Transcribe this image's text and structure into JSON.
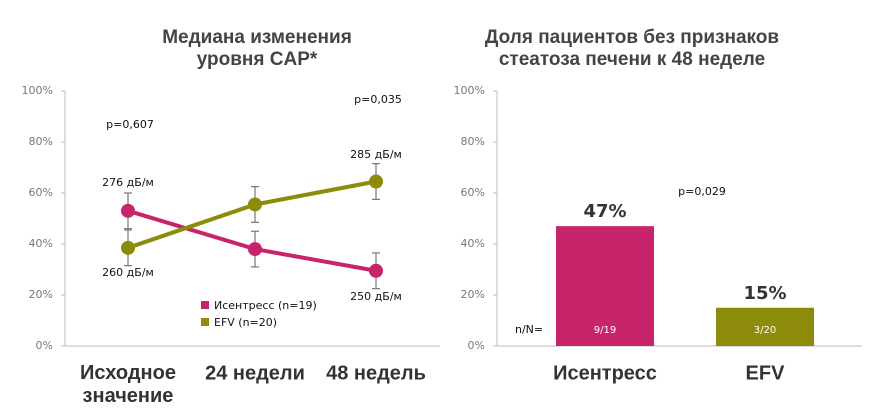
{
  "chart_data": [
    {
      "type": "line",
      "title": "Медиана изменения\nуровня CAP*",
      "categories": [
        "Исходное\nзначение",
        "24 недели",
        "48 недель"
      ],
      "series": [
        {
          "name": "Исентресс (n=19)",
          "color": "#c8246b",
          "values": [
            53,
            38,
            29.5
          ],
          "errors": [
            7,
            7,
            7
          ]
        },
        {
          "name": "EFV (n=20)",
          "color": "#8c8c0a",
          "values": [
            38.5,
            55.5,
            64.5
          ],
          "errors": [
            7,
            7,
            7
          ]
        }
      ],
      "annotations": [
        "p=0,607",
        "p=0,035",
        "276 дБ/м",
        "260 дБ/м",
        "285 дБ/м",
        "250 дБ/м"
      ],
      "ylim": [
        0,
        100
      ],
      "yticks": [
        {
          "value": 0,
          "label": "0%"
        },
        {
          "value": 20,
          "label": "20%"
        },
        {
          "value": 40,
          "label": "40%"
        },
        {
          "value": 60,
          "label": "60%"
        },
        {
          "value": 80,
          "label": "80%"
        },
        {
          "value": 100,
          "label": "100%"
        }
      ]
    },
    {
      "type": "bar",
      "title": "Доля пациентов без признаков\nстеатоза печени к 48 неделе",
      "categories": [
        "Исентресс",
        "EFV"
      ],
      "values": [
        47,
        15
      ],
      "value_labels": [
        "47%",
        "15%"
      ],
      "colors": [
        "#c8246b",
        "#8c8c0a"
      ],
      "inner_labels": [
        "9/19",
        "3/20"
      ],
      "n_label": "n/N=",
      "annotations": [
        "p=0,029"
      ],
      "ylim": [
        0,
        100
      ],
      "yticks": [
        {
          "value": 0,
          "label": "0%"
        },
        {
          "value": 20,
          "label": "20%"
        },
        {
          "value": 40,
          "label": "40%"
        },
        {
          "value": 60,
          "label": "60%"
        },
        {
          "value": 80,
          "label": "80%"
        },
        {
          "value": 100,
          "label": "100%"
        }
      ]
    }
  ]
}
